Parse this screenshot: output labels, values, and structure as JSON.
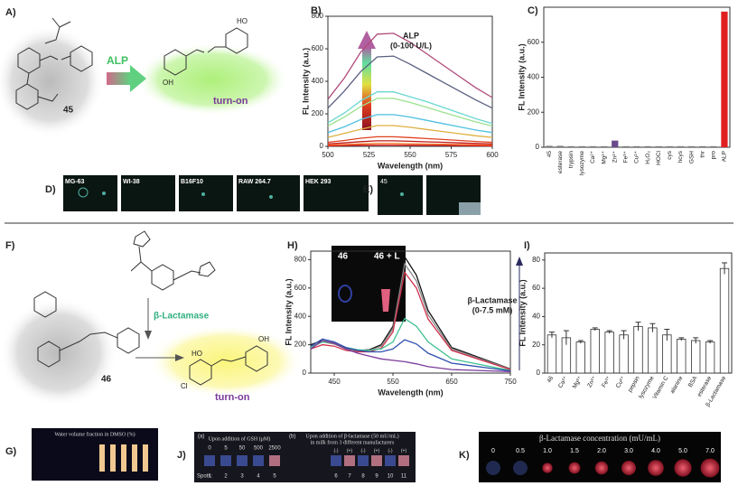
{
  "figure": {
    "panel_labels": [
      "A)",
      "B)",
      "C)",
      "D)",
      "E)",
      "F)",
      "H)",
      "I)",
      "G)",
      "J)",
      "K)"
    ],
    "a": {
      "enzyme": "ALP",
      "compound": "45",
      "result": "turn-on",
      "atoms": [
        "HO",
        "OH"
      ]
    },
    "d_cells": [
      "MG-63",
      "WI-38",
      "B16F10",
      "RAW 264.7",
      "HEK 293"
    ],
    "e_label": "45",
    "f": {
      "enzyme": "β-Lactamase",
      "compound": "46",
      "result": "turn-on",
      "atoms": [
        "HO",
        "OH",
        "Cl"
      ]
    },
    "h_inset": [
      "46",
      "46 + L"
    ],
    "g_title": "Water volume fraction in DMSO (%)",
    "j": {
      "a_label": "(a)",
      "a_title": "Upon addition of GSH (μM)",
      "gsh": [
        "0",
        "5",
        "50",
        "500",
        "2500"
      ],
      "b_label": "(b)",
      "b_title": "Upon addition of β-lactamase (50 mU/mL)",
      "b_subtitle": "in milk from 3 different manufacturers",
      "signs": [
        "(-)",
        "(+)",
        "(-)",
        "(+)",
        "(-)",
        "(+)"
      ],
      "spots_label": "Spots:",
      "spots": [
        "1",
        "2",
        "3",
        "4",
        "5",
        "6",
        "7",
        "8",
        "9",
        "10",
        "11"
      ]
    },
    "k": {
      "title": "β-Lactamase concentration (mU/mL)",
      "concentrations": [
        "0",
        "0.5",
        "1.0",
        "1.5",
        "2.0",
        "3.0",
        "4.0",
        "5.0",
        "7.0"
      ]
    }
  },
  "chart_data": [
    {
      "type": "line",
      "annotation": [
        "ALP",
        "(0-100 U/L)"
      ],
      "x_label": "Wavelength (nm)",
      "y_label": "FL Intensity (a.u.)",
      "x": [
        500,
        510,
        520,
        530,
        540,
        550,
        560,
        570,
        580,
        590,
        600
      ],
      "xlim": [
        500,
        600
      ],
      "xticks": [
        500,
        525,
        550,
        575,
        600
      ],
      "ylim": [
        0,
        800
      ],
      "yticks": [
        0,
        200,
        400,
        600,
        800
      ],
      "series": [
        {
          "color": "#b04a7a",
          "values": [
            290,
            420,
            580,
            690,
            695,
            640,
            570,
            500,
            430,
            360,
            300
          ]
        },
        {
          "color": "#5a5f80",
          "values": [
            235,
            340,
            460,
            550,
            555,
            505,
            450,
            395,
            340,
            285,
            235
          ]
        },
        {
          "color": "#6ad8d0",
          "values": [
            145,
            205,
            280,
            335,
            335,
            305,
            275,
            240,
            205,
            170,
            140
          ]
        },
        {
          "color": "#9be28e",
          "values": [
            125,
            180,
            245,
            295,
            295,
            270,
            240,
            210,
            180,
            150,
            125
          ]
        },
        {
          "color": "#4fc0e0",
          "values": [
            85,
            120,
            165,
            195,
            195,
            180,
            160,
            140,
            120,
            100,
            85
          ]
        },
        {
          "color": "#e0b040",
          "values": [
            55,
            80,
            105,
            128,
            128,
            117,
            104,
            91,
            78,
            65,
            55
          ]
        },
        {
          "color": "#e04020",
          "values": [
            25,
            36,
            50,
            59,
            59,
            54,
            48,
            42,
            36,
            30,
            25
          ]
        },
        {
          "color": "#c01818",
          "values": [
            15,
            21,
            29,
            34,
            34,
            31,
            28,
            25,
            21,
            18,
            15
          ]
        },
        {
          "color": "#f07020",
          "values": [
            8,
            11,
            15,
            18,
            18,
            16,
            14,
            13,
            11,
            9,
            8
          ]
        },
        {
          "color": "#e02020",
          "values": [
            3,
            5,
            7,
            8,
            8,
            7,
            6,
            6,
            5,
            4,
            3
          ]
        }
      ]
    },
    {
      "type": "bar",
      "y_label": "FL Intensity (a.u.)",
      "categories": [
        "45",
        "esterase",
        "trypsin",
        "lysozyme",
        "Ca²⁺",
        "Mg²⁺",
        "Zn²⁺",
        "Fe³⁺",
        "Cu²⁺",
        "H₂O₂",
        "HOCl",
        "cys",
        "hcys",
        "GSH",
        "thr",
        "pro",
        "ALP"
      ],
      "values": [
        8,
        8,
        6,
        6,
        6,
        6,
        38,
        6,
        6,
        6,
        6,
        6,
        6,
        6,
        6,
        6,
        775
      ],
      "colors": [
        "#777777",
        "#777777",
        "#777777",
        "#777777",
        "#777777",
        "#777777",
        "#6a4a8a",
        "#777777",
        "#777777",
        "#777777",
        "#777777",
        "#777777",
        "#777777",
        "#777777",
        "#777777",
        "#777777",
        "#e02020"
      ],
      "ylim": [
        0,
        800
      ],
      "yticks": [
        0,
        200,
        400,
        600
      ]
    },
    {
      "type": "line",
      "annotation": [
        "β-Lactamase",
        "(0-7.5 mM)"
      ],
      "x_label": "Wavelength (nm)",
      "y_label": "FL Intensity (a.u.)",
      "x": [
        410,
        430,
        450,
        470,
        490,
        510,
        530,
        550,
        570,
        590,
        610,
        650,
        750
      ],
      "xlim": [
        410,
        750
      ],
      "xticks": [
        450,
        550,
        650,
        750
      ],
      "ylim": [
        0,
        860
      ],
      "yticks": [
        0,
        200,
        400,
        600,
        800
      ],
      "series": [
        {
          "color": "#111111",
          "values": [
            200,
            230,
            210,
            175,
            160,
            165,
            200,
            330,
            820,
            690,
            440,
            180,
            30
          ]
        },
        {
          "color": "#888888",
          "values": [
            190,
            220,
            205,
            170,
            155,
            160,
            190,
            310,
            770,
            650,
            410,
            170,
            28
          ]
        },
        {
          "color": "#d0304a",
          "values": [
            170,
            200,
            190,
            160,
            150,
            150,
            175,
            290,
            710,
            600,
            380,
            160,
            25
          ]
        },
        {
          "color": "#40c090",
          "values": [
            180,
            220,
            215,
            180,
            165,
            160,
            170,
            220,
            385,
            330,
            220,
            100,
            18
          ]
        },
        {
          "color": "#3050b0",
          "values": [
            190,
            240,
            220,
            180,
            160,
            150,
            150,
            170,
            235,
            205,
            140,
            70,
            15
          ]
        },
        {
          "color": "#7a3a9a",
          "values": [
            170,
            230,
            210,
            170,
            140,
            120,
            100,
            90,
            80,
            65,
            45,
            25,
            10
          ]
        }
      ]
    },
    {
      "type": "errorbar",
      "y_label": "FL Intensity (a.u.)",
      "categories": [
        "46",
        "Ca²⁺",
        "Mg²⁺",
        "Zn²⁺",
        "Fe³⁺",
        "Cu²⁺",
        "pepsin",
        "lysozyme",
        "Vitamin C",
        "alanine",
        "BSA",
        "esterase",
        "β-Lactamase"
      ],
      "values": [
        27,
        25,
        22,
        31,
        29,
        27,
        33,
        32,
        27,
        24,
        23,
        22,
        74
      ],
      "errors": [
        2,
        5,
        1,
        1,
        1,
        3,
        3,
        3,
        4,
        1,
        2,
        1,
        4
      ],
      "color": "#ffffff",
      "ylim": [
        0,
        85
      ],
      "yticks": [
        0,
        20,
        40,
        60,
        80
      ]
    }
  ]
}
